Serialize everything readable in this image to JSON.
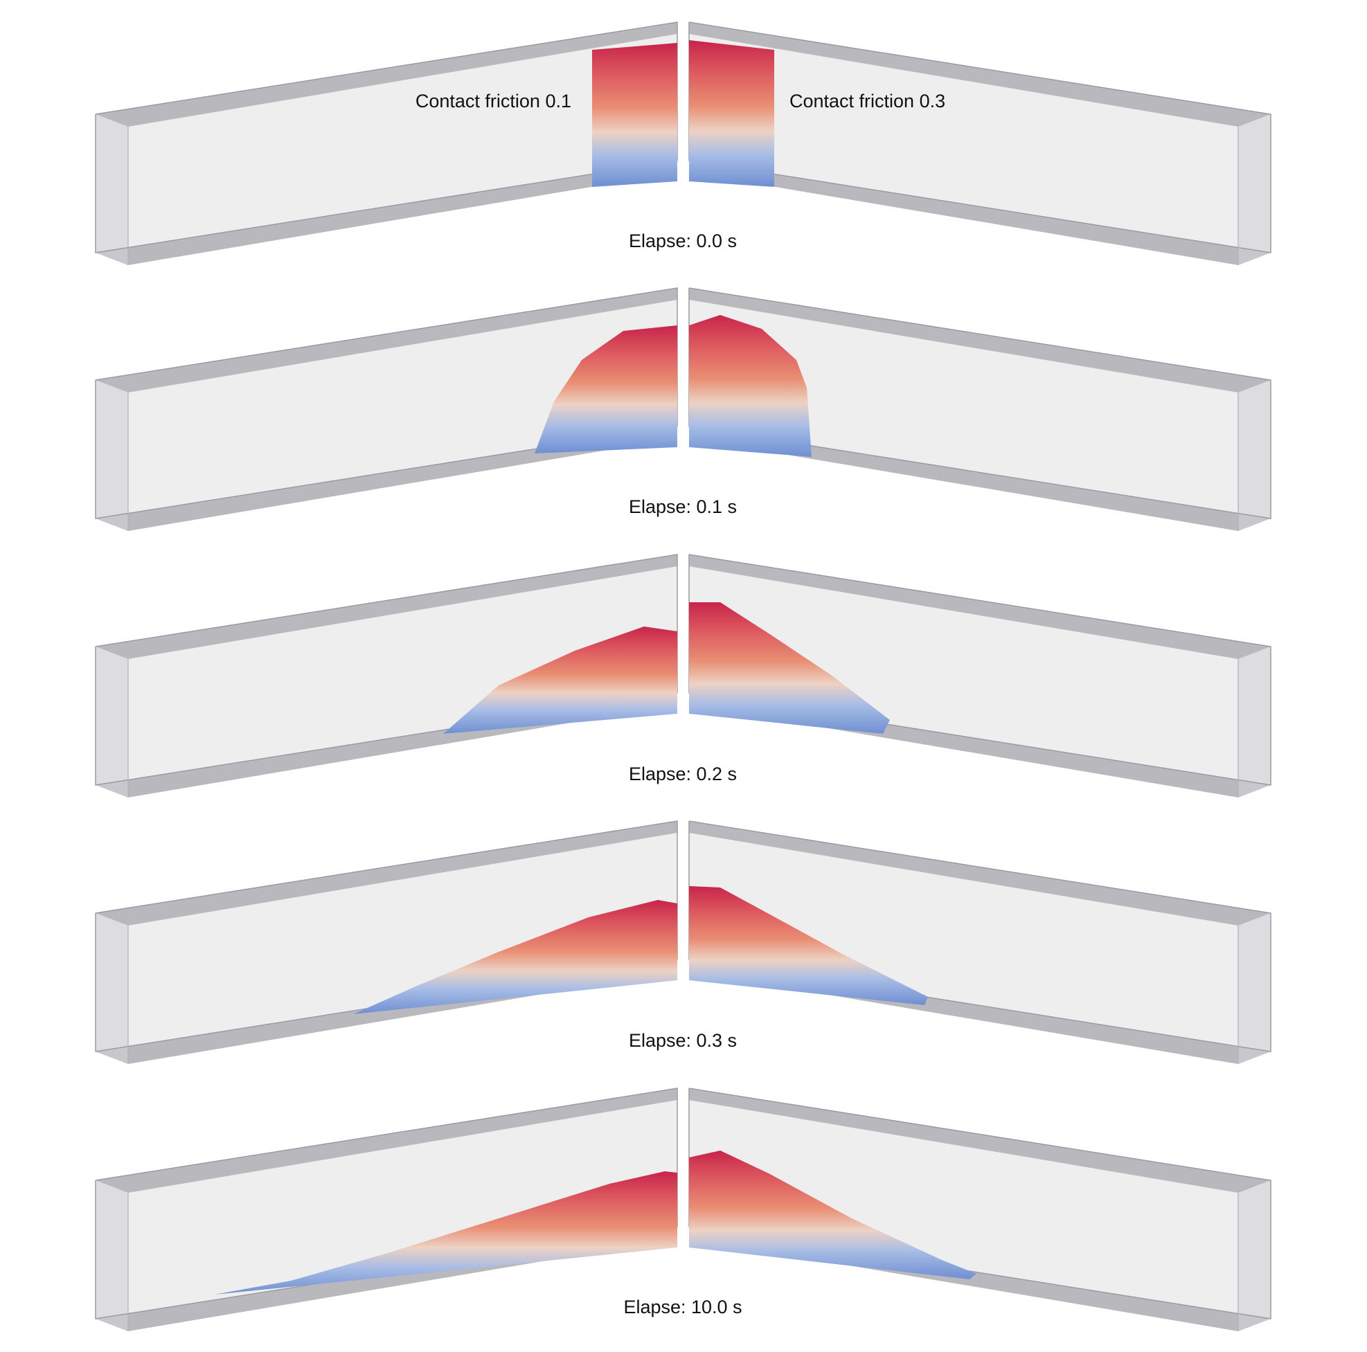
{
  "figure": {
    "left_label": "Contact friction 0.1",
    "right_label": "Contact friction 0.3",
    "frames": [
      {
        "elapse": "Elapse: 0.0 s",
        "left_reach": 0.0,
        "right_reach": 0.0
      },
      {
        "elapse": "Elapse: 0.1 s",
        "left_reach": 0.2,
        "right_reach": 0.19
      },
      {
        "elapse": "Elapse: 0.2 s",
        "left_reach": 0.41,
        "right_reach": 0.34
      },
      {
        "elapse": "Elapse: 0.3 s",
        "left_reach": 0.56,
        "right_reach": 0.41
      },
      {
        "elapse": "Elapse: 10.0 s",
        "left_reach": 0.88,
        "right_reach": 0.49
      }
    ]
  },
  "colors": {
    "box_face": "#eeeeef",
    "box_band": "#b9b9bd",
    "box_edge": "#9a9aa6",
    "particle_top": "#c8244a",
    "particle_mid": "#e98f74",
    "particle_light": "#edd2c4",
    "particle_base": "#6f8fd2"
  }
}
